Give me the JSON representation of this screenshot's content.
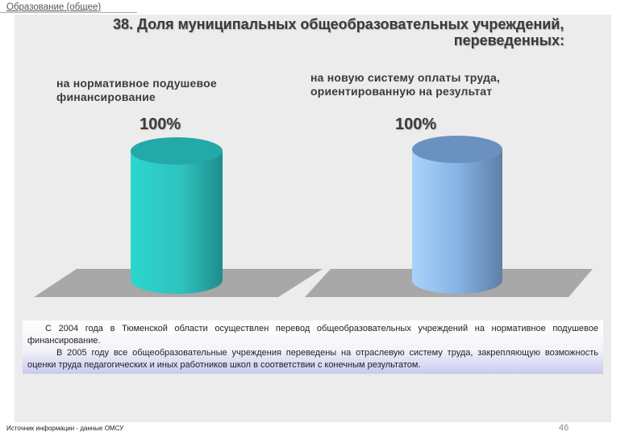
{
  "header": {
    "section": "Образование (общее)",
    "title_line1": "38. Доля муниципальных общеобразовательных учреждений,",
    "title_line2": "переведенных:"
  },
  "chart_data": [
    {
      "type": "bar",
      "categories": [
        "на нормативное подушевое финансирование"
      ],
      "values": [
        100
      ],
      "data_labels": [
        "100%"
      ],
      "ylim": [
        0,
        100
      ],
      "color": "#33cccc"
    },
    {
      "type": "bar",
      "categories": [
        "на новую систему оплаты труда, ориентированную на результат"
      ],
      "values": [
        100
      ],
      "data_labels": [
        "100%"
      ],
      "ylim": [
        0,
        100
      ],
      "color": "#6fa6dc"
    }
  ],
  "captions": {
    "left_line1": "на нормативное подушевое",
    "left_line2": "финансирование",
    "right_line1": "на новую систему оплаты труда,",
    "right_line2": "ориентированную на результат"
  },
  "note": {
    "para1": "С 2004 года в Тюменской области осуществлен перевод общеобразовательных учреждений на нормативное подушевое финансирование.",
    "para2": "В 2005 году все общеобразовательные учреждения переведены на отраслевую систему труда, закрепляющую возможность оценки труда педагогических и иных работников школ в соответствии с конечным результатом."
  },
  "footer": {
    "source": "Источник информации - данные ОМСУ",
    "page": "46"
  }
}
